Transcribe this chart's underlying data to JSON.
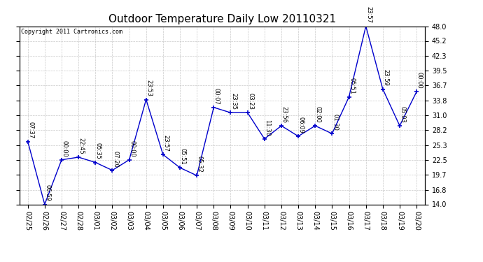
{
  "title": "Outdoor Temperature Daily Low 20110321",
  "copyright": "Copyright 2011 Cartronics.com",
  "x_labels": [
    "02/25",
    "02/26",
    "02/27",
    "02/28",
    "03/01",
    "03/02",
    "03/03",
    "03/04",
    "03/05",
    "03/06",
    "03/07",
    "03/08",
    "03/09",
    "03/10",
    "03/11",
    "03/12",
    "03/13",
    "03/14",
    "03/15",
    "03/16",
    "03/17",
    "03/18",
    "03/19",
    "03/20"
  ],
  "y_values": [
    26.0,
    14.0,
    22.5,
    23.0,
    22.0,
    20.5,
    22.5,
    34.0,
    23.5,
    21.0,
    19.5,
    32.5,
    31.5,
    31.5,
    26.5,
    29.0,
    27.0,
    29.0,
    27.5,
    34.5,
    48.0,
    36.0,
    29.0,
    35.5
  ],
  "point_labels": [
    "07:37",
    "06:59",
    "00:00",
    "22:45",
    "05:35",
    "07:20",
    "00:00",
    "23:53",
    "23:57",
    "05:51",
    "05:32",
    "00:07",
    "23:35",
    "03:23",
    "11:30",
    "23:56",
    "06:09",
    "02:00",
    "01:30",
    "05:51",
    "23:57",
    "23:59",
    "05:03",
    "00:00"
  ],
  "ylim": [
    14.0,
    48.0
  ],
  "yticks": [
    14.0,
    16.8,
    19.7,
    22.5,
    25.3,
    28.2,
    31.0,
    33.8,
    36.7,
    39.5,
    42.3,
    45.2,
    48.0
  ],
  "line_color": "#0000cc",
  "marker_color": "#0000cc",
  "bg_color": "#ffffff",
  "grid_color": "#bbbbbb",
  "title_fontsize": 11,
  "label_fontsize": 6,
  "tick_fontsize": 7,
  "copyright_fontsize": 6
}
